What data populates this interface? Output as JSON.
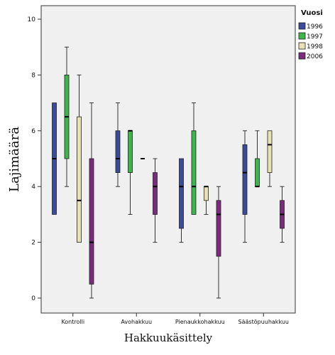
{
  "chart_data": {
    "type": "boxplot",
    "xlabel": "Hakkuukäsittely",
    "ylabel": "Lajimäärä",
    "ylim": [
      0,
      10
    ],
    "yticks": [
      0,
      2,
      4,
      6,
      8,
      10
    ],
    "grid": false,
    "legend_position": "top-right",
    "legend_title": "Vuosi",
    "categories": [
      "Kontrolli",
      "Avohakkuu",
      "Pienaukkohakkuu",
      "Säästöpuuhakkuu"
    ],
    "series": [
      {
        "name": "1996",
        "color": "#3b4b9b",
        "boxes": [
          {
            "min": 3,
            "q1": 3,
            "median": 5,
            "q3": 7,
            "max": 7
          },
          {
            "min": 4,
            "q1": 4.5,
            "median": 5,
            "q3": 6,
            "max": 7
          },
          {
            "min": 2,
            "q1": 2.5,
            "median": 4,
            "q3": 5,
            "max": 5
          },
          {
            "min": 2,
            "q1": 3,
            "median": 4.5,
            "q3": 5.5,
            "max": 6
          }
        ]
      },
      {
        "name": "1997",
        "color": "#3cb54a",
        "boxes": [
          {
            "min": 4,
            "q1": 5,
            "median": 6.5,
            "q3": 8,
            "max": 9
          },
          {
            "min": 3,
            "q1": 4.5,
            "median": 6,
            "q3": 6,
            "max": 6
          },
          {
            "min": 3,
            "q1": 3,
            "median": 4,
            "q3": 6,
            "max": 7
          },
          {
            "min": 4,
            "q1": 4,
            "median": 4,
            "q3": 5,
            "max": 6
          }
        ]
      },
      {
        "name": "1998",
        "color": "#e6e2b2",
        "boxes": [
          {
            "min": 2,
            "q1": 2,
            "median": 3.5,
            "q3": 6.5,
            "max": 8
          },
          {
            "min": 5,
            "q1": 5,
            "median": 5,
            "q3": 5,
            "max": 5
          },
          {
            "min": 3,
            "q1": 3.5,
            "median": 4,
            "q3": 4,
            "max": 4
          },
          {
            "min": 4,
            "q1": 4.5,
            "median": 5.5,
            "q3": 6,
            "max": 6
          }
        ]
      },
      {
        "name": "2006",
        "color": "#7b2a7d",
        "boxes": [
          {
            "min": 0,
            "q1": 0.5,
            "median": 2,
            "q3": 5,
            "max": 7
          },
          {
            "min": 2,
            "q1": 3,
            "median": 4,
            "q3": 4.5,
            "max": 5
          },
          {
            "min": 0,
            "q1": 1.5,
            "median": 3,
            "q3": 3.5,
            "max": 4
          },
          {
            "min": 2,
            "q1": 2.5,
            "median": 3,
            "q3": 3.5,
            "max": 4
          }
        ]
      }
    ]
  }
}
